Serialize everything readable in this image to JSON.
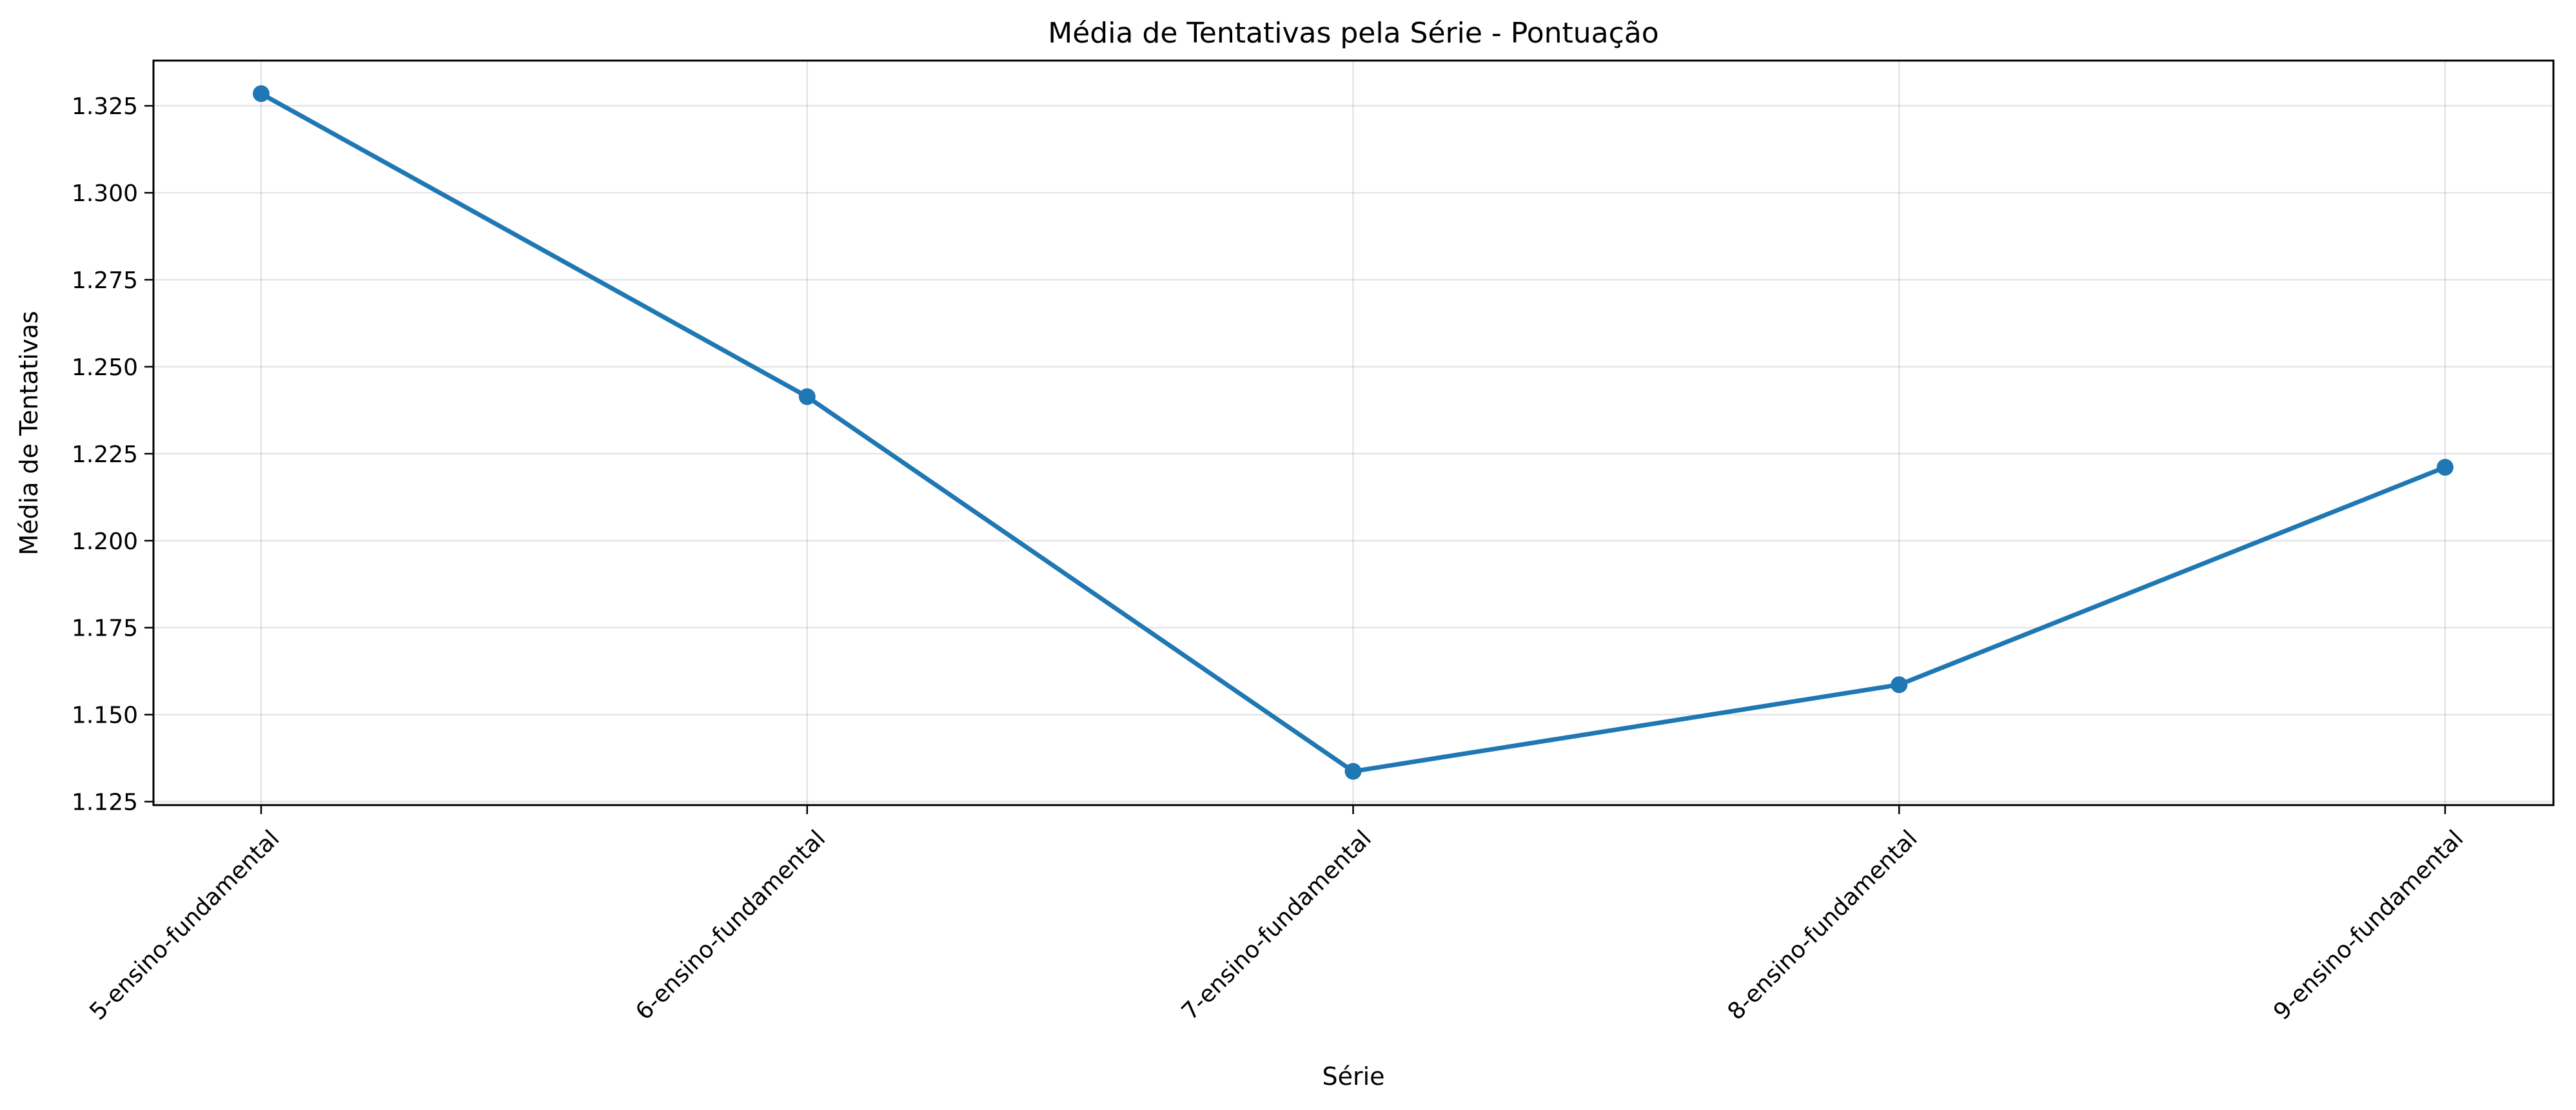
{
  "chart_data": {
    "type": "line",
    "title": "Média de Tentativas pela Série - Pontuação",
    "xlabel": "Série",
    "ylabel": "Média de Tentativas",
    "categories": [
      "5-ensino-fundamental",
      "6-ensino-fundamental",
      "7-ensino-fundamental",
      "8-ensino-fundamental",
      "9-ensino-fundamental"
    ],
    "series": [
      {
        "values": [
          1.3285,
          1.2414,
          1.1337,
          1.1586,
          1.2211
        ],
        "color": "#1f77b4"
      }
    ],
    "ylim": [
      1.124,
      1.338
    ],
    "yticks": [
      1.125,
      1.15,
      1.175,
      1.2,
      1.225,
      1.25,
      1.275,
      1.3,
      1.325
    ],
    "ytick_labels": [
      "1.125",
      "1.150",
      "1.175",
      "1.200",
      "1.225",
      "1.250",
      "1.275",
      "1.300",
      "1.325"
    ],
    "grid": true,
    "legend": false
  }
}
